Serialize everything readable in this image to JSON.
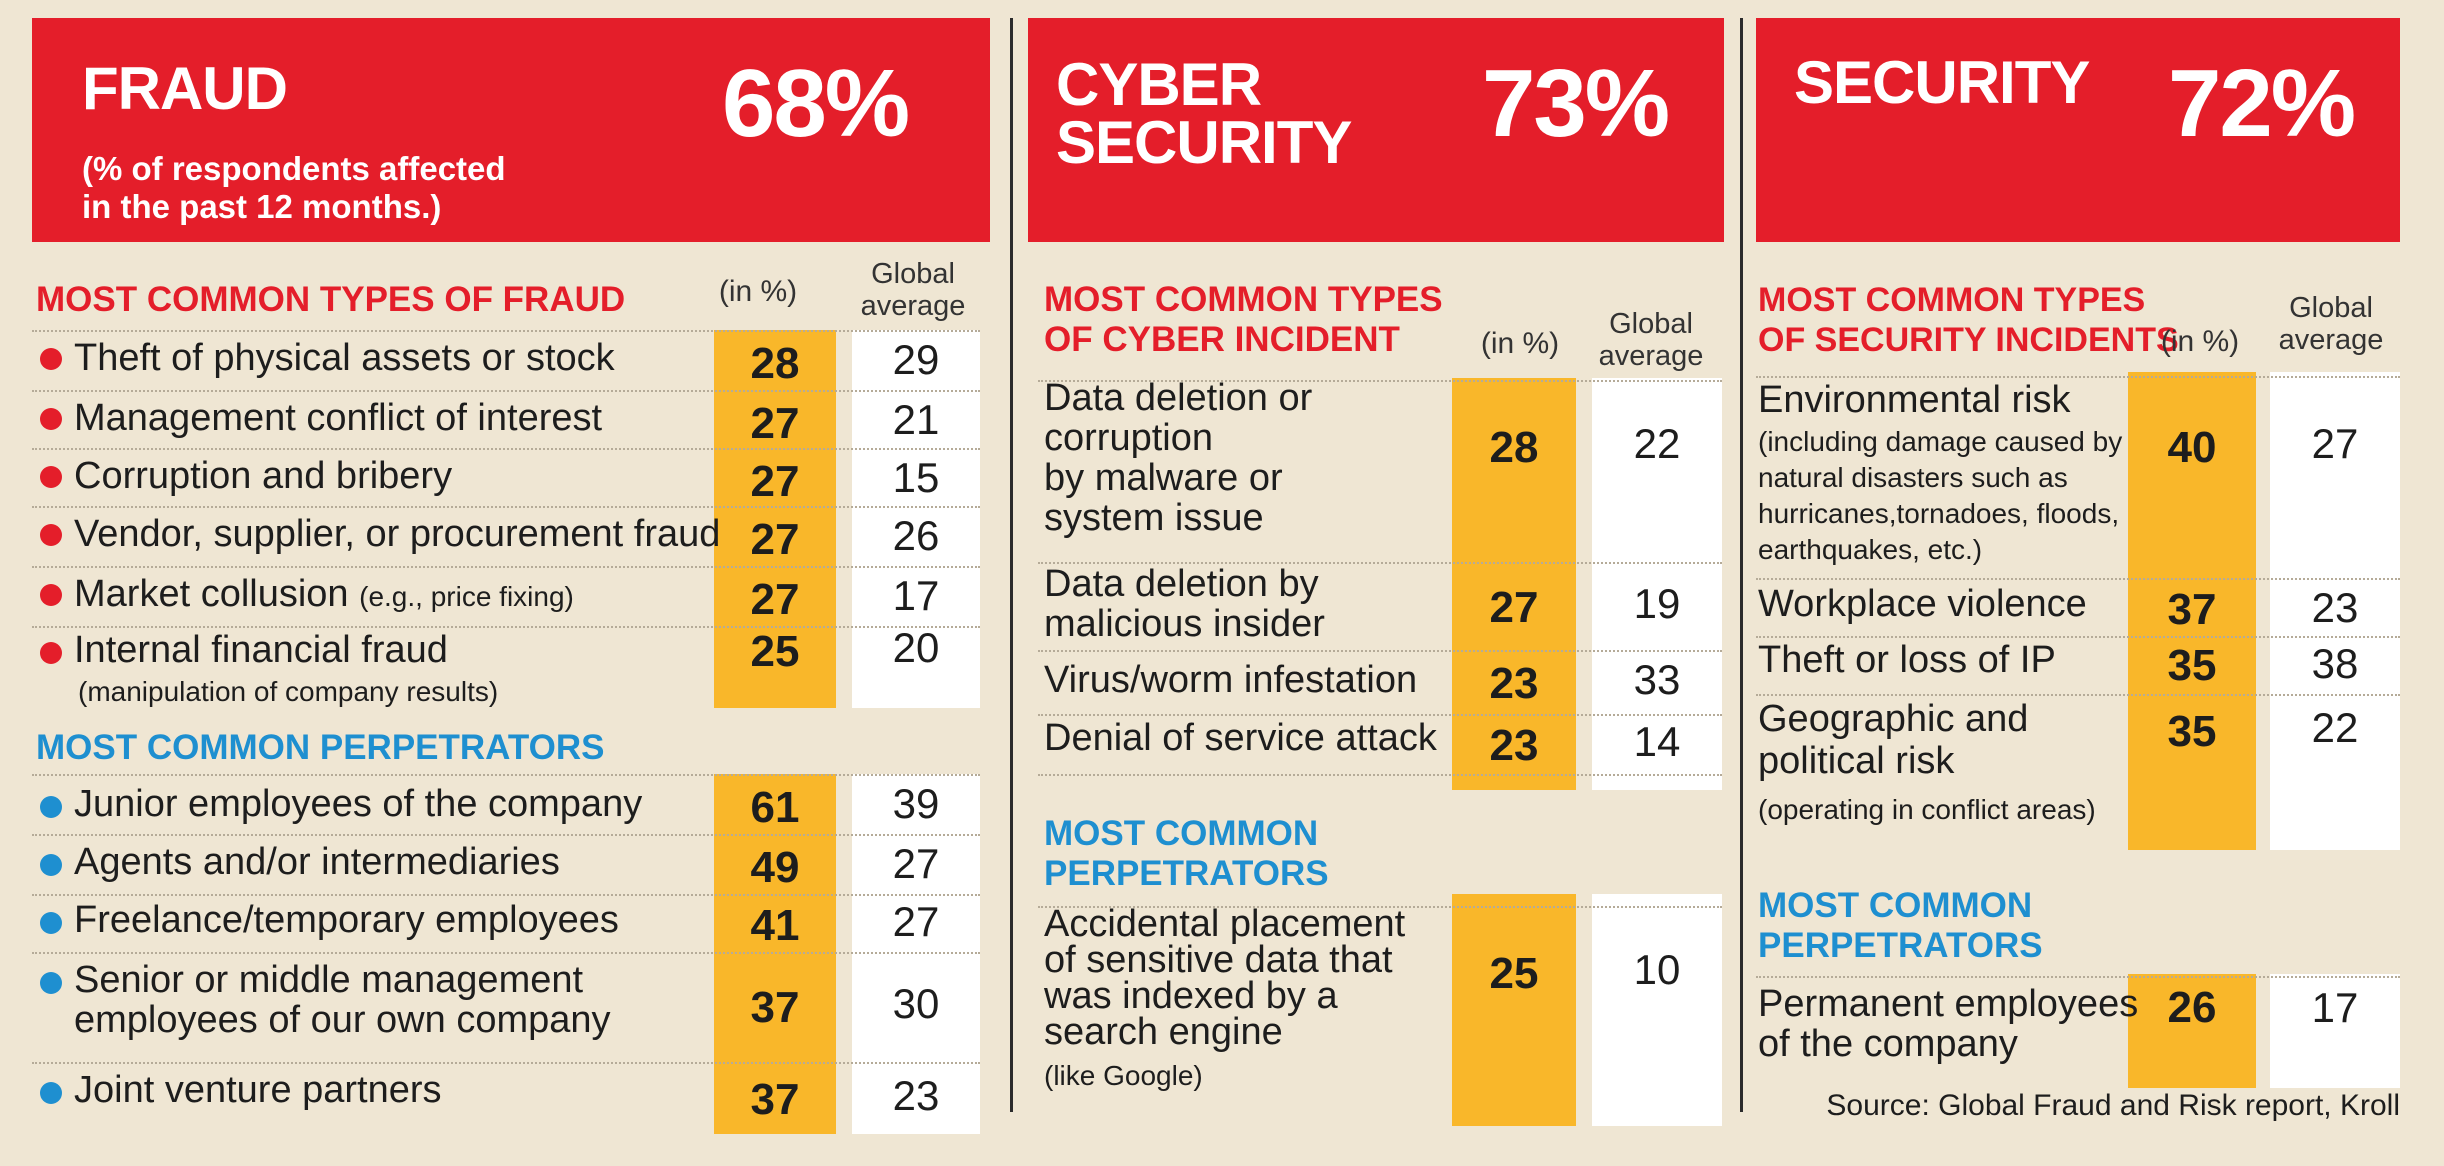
{
  "chart_data": [
    {
      "type": "table",
      "title": "FRAUD",
      "subtitle": "(% of respondents affected\nin the past 12 months.)",
      "headline": "68%",
      "col_in": "(in %)",
      "col_global": "Global\naverage",
      "sections": [
        {
          "heading": "MOST COMMON TYPES OF FRAUD",
          "color": "#e41e2a",
          "rows": [
            {
              "label": "Theft of physical assets or stock",
              "note": "",
              "value": 28,
              "global": 29
            },
            {
              "label": "Management conflict of interest",
              "note": "",
              "value": 27,
              "global": 21
            },
            {
              "label": "Corruption and bribery",
              "note": "",
              "value": 27,
              "global": 15
            },
            {
              "label": "Vendor, supplier, or procurement fraud",
              "note": "",
              "value": 27,
              "global": 26
            },
            {
              "label": "Market collusion",
              "note": "(e.g., price fixing)",
              "value": 27,
              "global": 17
            },
            {
              "label": "Internal financial fraud",
              "note": "(manipulation of company results)",
              "value": 25,
              "global": 20
            }
          ]
        },
        {
          "heading": "MOST COMMON PERPETRATORS",
          "color": "#1e8fd0",
          "rows": [
            {
              "label": "Junior employees of the company",
              "note": "",
              "value": 61,
              "global": 39
            },
            {
              "label": "Agents and/or intermediaries",
              "note": "",
              "value": 49,
              "global": 27
            },
            {
              "label": "Freelance/temporary employees",
              "note": "",
              "value": 41,
              "global": 27
            },
            {
              "label": "Senior or middle management\nemployees of our own company",
              "note": "",
              "value": 37,
              "global": 30
            },
            {
              "label": "Joint venture partners",
              "note": "",
              "value": 37,
              "global": 23
            }
          ]
        }
      ]
    },
    {
      "type": "table",
      "title": "CYBER\nSECURITY",
      "headline": "73%",
      "col_in": "(in %)",
      "col_global": "Global\naverage",
      "sections": [
        {
          "heading": "MOST COMMON TYPES\nOF CYBER INCIDENT",
          "color": "#e41e2a",
          "rows": [
            {
              "label": "Data deletion or\ncorruption\nby malware or\nsystem issue",
              "note": "",
              "value": 28,
              "global": 22
            },
            {
              "label": "Data deletion by\nmalicious insider",
              "note": "",
              "value": 27,
              "global": 19
            },
            {
              "label": "Virus/worm infestation",
              "note": "",
              "value": 23,
              "global": 33
            },
            {
              "label": "Denial of service attack",
              "note": "",
              "value": 23,
              "global": 14
            }
          ]
        },
        {
          "heading": "MOST COMMON\nPERPETRATORS",
          "color": "#1e8fd0",
          "rows": [
            {
              "label": "Accidental placement\nof sensitive data that\nwas indexed by a\nsearch engine",
              "note": "(like Google)",
              "value": 25,
              "global": 10
            }
          ]
        }
      ]
    },
    {
      "type": "table",
      "title": "SECURITY",
      "headline": "72%",
      "col_in": "(in %)",
      "col_global": "Global\naverage",
      "sections": [
        {
          "heading": "MOST COMMON TYPES\nOF SECURITY INCIDENTS",
          "color": "#e41e2a",
          "rows": [
            {
              "label": "Environmental risk",
              "note": "(including damage caused by\nnatural disasters such as\nhurricanes,tornadoes, floods,\nearthquakes, etc.)",
              "value": 40,
              "global": 27
            },
            {
              "label": "Workplace violence",
              "note": "",
              "value": 37,
              "global": 23
            },
            {
              "label": "Theft or loss of IP",
              "note": "",
              "value": 35,
              "global": 38
            },
            {
              "label": "Geographic and\npolitical risk",
              "note": "(operating in conflict areas)",
              "value": 35,
              "global": 22
            }
          ]
        },
        {
          "heading": "MOST COMMON\nPERPETRATORS",
          "color": "#1e8fd0",
          "rows": [
            {
              "label": "Permanent employees\nof the company",
              "note": "",
              "value": 26,
              "global": 17
            }
          ]
        }
      ]
    }
  ],
  "source": "Source: Global Fraud and Risk report, Kroll"
}
